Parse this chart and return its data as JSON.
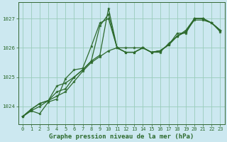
{
  "title": "Graphe pression niveau de la mer (hPa)",
  "background_color": "#cce8f0",
  "grid_color": "#99ccbb",
  "line_color": "#2d6a2d",
  "spine_color": "#336633",
  "xlim": [
    -0.5,
    23.5
  ],
  "ylim": [
    1023.4,
    1027.55
  ],
  "yticks": [
    1024,
    1025,
    1026,
    1027
  ],
  "xticks": [
    0,
    1,
    2,
    3,
    4,
    5,
    6,
    7,
    8,
    9,
    10,
    11,
    12,
    13,
    14,
    15,
    16,
    17,
    18,
    19,
    20,
    21,
    22,
    23
  ],
  "series": [
    [
      1023.65,
      1023.85,
      1024.0,
      1024.2,
      1024.35,
      1024.5,
      1024.85,
      1025.2,
      1025.5,
      1025.7,
      1025.9,
      1026.0,
      1025.85,
      1025.85,
      1026.0,
      1025.85,
      1025.9,
      1026.1,
      1026.4,
      1026.55,
      1027.0,
      1027.0,
      1026.85,
      1026.55
    ],
    [
      1023.65,
      1023.9,
      1024.1,
      1024.2,
      1024.5,
      1024.6,
      1025.0,
      1025.25,
      1025.55,
      1026.75,
      1027.15,
      1026.0,
      1025.85,
      1025.85,
      1026.0,
      1025.85,
      1025.9,
      1026.1,
      1026.4,
      1026.6,
      1027.0,
      1027.0,
      1026.85,
      1026.6
    ],
    [
      1023.65,
      1023.9,
      1024.1,
      1024.2,
      1024.7,
      1024.8,
      1025.0,
      1025.25,
      1025.55,
      1025.75,
      1027.35,
      1026.0,
      1025.85,
      1025.85,
      1026.0,
      1025.85,
      1025.9,
      1026.1,
      1026.5,
      1026.5,
      1027.0,
      1027.0,
      1026.85,
      1026.6
    ],
    [
      1023.65,
      1023.85,
      1023.75,
      1024.15,
      1024.25,
      1024.95,
      1025.25,
      1025.3,
      1026.05,
      1026.85,
      1027.0,
      1026.0,
      1026.0,
      1026.0,
      1026.0,
      1025.85,
      1025.85,
      1026.15,
      1026.4,
      1026.55,
      1026.95,
      1026.95,
      1026.85,
      1026.6
    ]
  ],
  "xlabel_fontsize": 6.5,
  "tick_fontsize": 5.0,
  "linewidth": 0.9,
  "markersize": 2.8
}
